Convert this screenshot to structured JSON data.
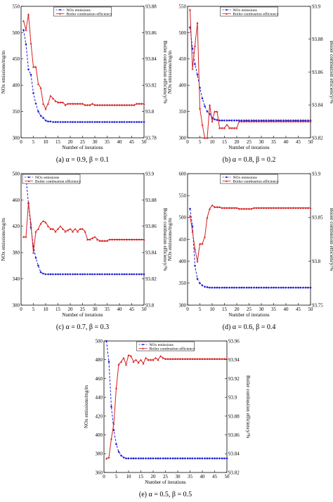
{
  "chart_data": [
    {
      "id": "a",
      "type": "line",
      "caption": "(a) α = 0.9, β = 0.1",
      "xlabel": "Number of iterations",
      "ylabel": "NOx emissions/mg/m",
      "y2label": "Boiler combustion efficiency/%",
      "xlim": [
        0,
        50
      ],
      "xticks": [
        0,
        5,
        10,
        15,
        20,
        25,
        30,
        35,
        40,
        45,
        50
      ],
      "ylim": [
        300,
        550
      ],
      "yticks": [
        300,
        350,
        400,
        450,
        500,
        550
      ],
      "y2lim": [
        93.78,
        93.88
      ],
      "y2ticks": [
        "93.78",
        "93.8",
        "93.82",
        "93.84",
        "93.86",
        "93.88"
      ],
      "legend_position": "top-center",
      "series": [
        {
          "name": "NOx emissions",
          "axis": "left",
          "color": "#1f1fd6",
          "style": "dashed",
          "values": [
            505,
            478,
            430,
            420,
            385,
            365,
            350,
            342,
            338,
            333,
            331,
            331,
            330,
            330,
            330,
            330,
            330,
            330,
            330,
            330,
            330,
            330,
            330,
            330,
            330,
            330,
            330,
            330,
            330,
            330,
            330,
            330,
            330,
            330,
            330,
            330,
            330,
            330,
            330,
            330,
            330,
            330,
            330,
            330,
            330,
            330,
            330,
            330,
            330,
            330
          ]
        },
        {
          "name": "Boiler combustion efficiency",
          "axis": "right",
          "color": "#d62020",
          "style": "solid",
          "values": [
            93.869,
            93.862,
            93.874,
            93.852,
            93.834,
            93.834,
            93.821,
            93.818,
            93.806,
            93.802,
            93.806,
            93.812,
            93.81,
            93.808,
            93.807,
            93.807,
            93.807,
            93.805,
            93.806,
            93.806,
            93.806,
            93.806,
            93.806,
            93.806,
            93.806,
            93.805,
            93.805,
            93.805,
            93.806,
            93.805,
            93.805,
            93.805,
            93.805,
            93.805,
            93.805,
            93.805,
            93.805,
            93.805,
            93.805,
            93.805,
            93.805,
            93.805,
            93.805,
            93.805,
            93.805,
            93.805,
            93.806,
            93.806,
            93.806,
            93.806
          ]
        }
      ]
    },
    {
      "id": "b",
      "type": "line",
      "caption": "(b) α = 0.8, β = 0.2",
      "xlabel": "Number of iterations",
      "ylabel": "NOx emissions/mg/m",
      "y2label": "Boiler combustion efficiency/%",
      "xlim": [
        0,
        50
      ],
      "xticks": [
        0,
        5,
        10,
        15,
        20,
        25,
        30,
        35,
        40,
        45,
        50
      ],
      "ylim": [
        300,
        550
      ],
      "yticks": [
        300,
        350,
        400,
        450,
        500,
        550
      ],
      "y2lim": [
        93.82,
        93.9
      ],
      "y2ticks": [
        "93.82",
        "93.84",
        "93.86",
        "93.88",
        "93.9"
      ],
      "legend_position": "top-center",
      "series": [
        {
          "name": "NOx emissions",
          "axis": "left",
          "color": "#1f1fd6",
          "style": "dashed",
          "values": [
            510,
            470,
            440,
            420,
            395,
            375,
            360,
            350,
            345,
            338,
            335,
            334,
            333,
            333,
            333,
            333,
            333,
            333,
            333,
            333,
            333,
            333,
            333,
            333,
            333,
            333,
            333,
            333,
            333,
            333,
            333,
            333,
            333,
            333,
            333,
            333,
            333,
            333,
            333,
            333,
            333,
            333,
            333,
            333,
            333,
            333,
            333,
            333,
            333,
            333
          ]
        },
        {
          "name": "Boiler combustion efficiency",
          "axis": "right",
          "color": "#d62020",
          "style": "solid",
          "values": [
            93.898,
            93.862,
            93.876,
            93.89,
            93.838,
            93.828,
            93.82,
            93.82,
            93.84,
            93.83,
            93.836,
            93.836,
            93.826,
            93.826,
            93.826,
            93.828,
            93.826,
            93.826,
            93.826,
            93.826,
            93.83,
            93.83,
            93.83,
            93.83,
            93.83,
            93.83,
            93.83,
            93.83,
            93.83,
            93.83,
            93.83,
            93.83,
            93.83,
            93.83,
            93.83,
            93.83,
            93.83,
            93.83,
            93.83,
            93.83,
            93.83,
            93.83,
            93.83,
            93.83,
            93.83,
            93.83,
            93.83,
            93.83,
            93.83,
            93.83
          ]
        }
      ]
    },
    {
      "id": "c",
      "type": "line",
      "caption": "(c) α = 0.7, β = 0.3",
      "xlabel": "Number of iterations",
      "ylabel": "NOx emissions/mg/m",
      "y2label": "Boiler combustion efficiency/%",
      "xlim": [
        0,
        50
      ],
      "xticks": [
        0,
        5,
        10,
        15,
        20,
        25,
        30,
        35,
        40,
        45,
        50
      ],
      "ylim": [
        300,
        500
      ],
      "yticks": [
        300,
        340,
        380,
        420,
        460,
        500
      ],
      "y2lim": [
        93.8,
        93.9
      ],
      "y2ticks": [
        "93.8",
        "93.82",
        "93.84",
        "93.86",
        "93.88",
        "93.9"
      ],
      "legend_position": "top-left",
      "series": [
        {
          "name": "NOx emissions",
          "axis": "left",
          "color": "#1f1fd6",
          "style": "dashed",
          "values": [
            493,
            493,
            455,
            418,
            390,
            372,
            360,
            350,
            348,
            347,
            347,
            347,
            347,
            347,
            347,
            347,
            347,
            347,
            347,
            347,
            347,
            347,
            347,
            347,
            347,
            347,
            347,
            347,
            347,
            347,
            347,
            347,
            347,
            347,
            347,
            347,
            347,
            347,
            347,
            347,
            347,
            347,
            347,
            347,
            347,
            347,
            347,
            347,
            347,
            347
          ]
        },
        {
          "name": "Boiler combustion efficiency",
          "axis": "right",
          "color": "#d62020",
          "style": "solid",
          "values": [
            93.852,
            93.852,
            93.878,
            93.862,
            93.84,
            93.856,
            93.858,
            93.862,
            93.864,
            93.863,
            93.86,
            93.858,
            93.858,
            93.856,
            93.858,
            93.86,
            93.858,
            93.856,
            93.857,
            93.858,
            93.856,
            93.858,
            93.856,
            93.858,
            93.858,
            93.856,
            93.85,
            93.85,
            93.851,
            93.852,
            93.85,
            93.849,
            93.849,
            93.849,
            93.849,
            93.85,
            93.85,
            93.85,
            93.85,
            93.85,
            93.85,
            93.85,
            93.85,
            93.85,
            93.85,
            93.85,
            93.85,
            93.85,
            93.85,
            93.85
          ]
        }
      ]
    },
    {
      "id": "d",
      "type": "line",
      "caption": "(d) α = 0.6, β = 0.4",
      "xlabel": "Number of iterations",
      "ylabel": "NOx emissions/mg/m",
      "y2label": "Boiler combustion efficiency/%",
      "xlim": [
        0,
        50
      ],
      "xticks": [
        0,
        5,
        10,
        15,
        20,
        25,
        30,
        35,
        40,
        45,
        50
      ],
      "ylim": [
        300,
        600
      ],
      "yticks": [
        300,
        350,
        400,
        450,
        500,
        550,
        600
      ],
      "y2lim": [
        93.75,
        93.9
      ],
      "y2ticks": [
        "93.75",
        "93.8",
        "93.85",
        "93.9"
      ],
      "legend_position": "top-center",
      "series": [
        {
          "name": "NOx emissions",
          "axis": "left",
          "color": "#1f1fd6",
          "style": "dashed",
          "values": [
            520,
            480,
            390,
            360,
            350,
            345,
            342,
            341,
            340,
            340,
            340,
            340,
            340,
            340,
            340,
            340,
            340,
            340,
            340,
            340,
            340,
            340,
            340,
            340,
            340,
            340,
            340,
            340,
            340,
            340,
            340,
            340,
            340,
            340,
            340,
            340,
            340,
            340,
            340,
            340,
            340,
            340,
            340,
            340,
            340,
            340,
            340,
            340,
            340,
            340
          ]
        },
        {
          "name": "Boiler combustion efficiency",
          "axis": "right",
          "color": "#d62020",
          "style": "solid",
          "values": [
            93.852,
            93.834,
            93.814,
            93.8,
            93.82,
            93.82,
            93.828,
            93.85,
            93.86,
            93.864,
            93.862,
            93.862,
            93.862,
            93.861,
            93.861,
            93.861,
            93.861,
            93.861,
            93.861,
            93.861,
            93.86,
            93.86,
            93.86,
            93.86,
            93.86,
            93.86,
            93.861,
            93.861,
            93.861,
            93.861,
            93.861,
            93.861,
            93.861,
            93.861,
            93.861,
            93.861,
            93.861,
            93.861,
            93.861,
            93.861,
            93.861,
            93.861,
            93.861,
            93.861,
            93.861,
            93.861,
            93.861,
            93.861,
            93.861,
            93.861
          ]
        }
      ]
    },
    {
      "id": "e",
      "type": "line",
      "caption": "(e) α = 0.5, β = 0.5",
      "xlabel": "Number of iterations",
      "ylabel": "NOx emissions/mg/m",
      "y2label": "Boiler combustion efficiency/%",
      "xlim": [
        0,
        50
      ],
      "xticks": [
        0,
        5,
        10,
        15,
        20,
        25,
        30,
        35,
        40,
        45,
        50
      ],
      "ylim": [
        360,
        500
      ],
      "yticks": [
        360,
        380,
        400,
        420,
        440,
        460,
        480,
        500
      ],
      "y2lim": [
        93.82,
        93.96
      ],
      "y2ticks": [
        "93.82",
        "93.84",
        "93.86",
        "93.88",
        "93.9",
        "93.92",
        "93.94",
        "93.96"
      ],
      "legend_position": "top-center",
      "series": [
        {
          "name": "NOx emissions",
          "axis": "left",
          "color": "#1f1fd6",
          "style": "dashed",
          "values": [
            500,
            478,
            430,
            405,
            390,
            382,
            378,
            376,
            375,
            375,
            375,
            375,
            375,
            375,
            375,
            375,
            375,
            375,
            375,
            375,
            375,
            375,
            375,
            375,
            375,
            375,
            375,
            375,
            375,
            375,
            375,
            375,
            375,
            375,
            375,
            375,
            375,
            375,
            375,
            375,
            375,
            375,
            375,
            375,
            375,
            375,
            375,
            375,
            375,
            375
          ]
        },
        {
          "name": "Boiler combustion efficiency",
          "axis": "right",
          "color": "#d62020",
          "style": "solid",
          "values": [
            93.835,
            93.836,
            93.856,
            93.872,
            93.91,
            93.935,
            93.938,
            93.942,
            93.935,
            93.945,
            93.944,
            93.938,
            93.94,
            93.937,
            93.94,
            93.936,
            93.942,
            93.94,
            93.94,
            93.94,
            93.942,
            93.94,
            93.944,
            93.942,
            93.941,
            93.941,
            93.941,
            93.941,
            93.941,
            93.941,
            93.941,
            93.941,
            93.941,
            93.941,
            93.941,
            93.941,
            93.941,
            93.941,
            93.941,
            93.941,
            93.941,
            93.941,
            93.941,
            93.941,
            93.941,
            93.941,
            93.941,
            93.941,
            93.941,
            93.941
          ]
        }
      ]
    }
  ]
}
